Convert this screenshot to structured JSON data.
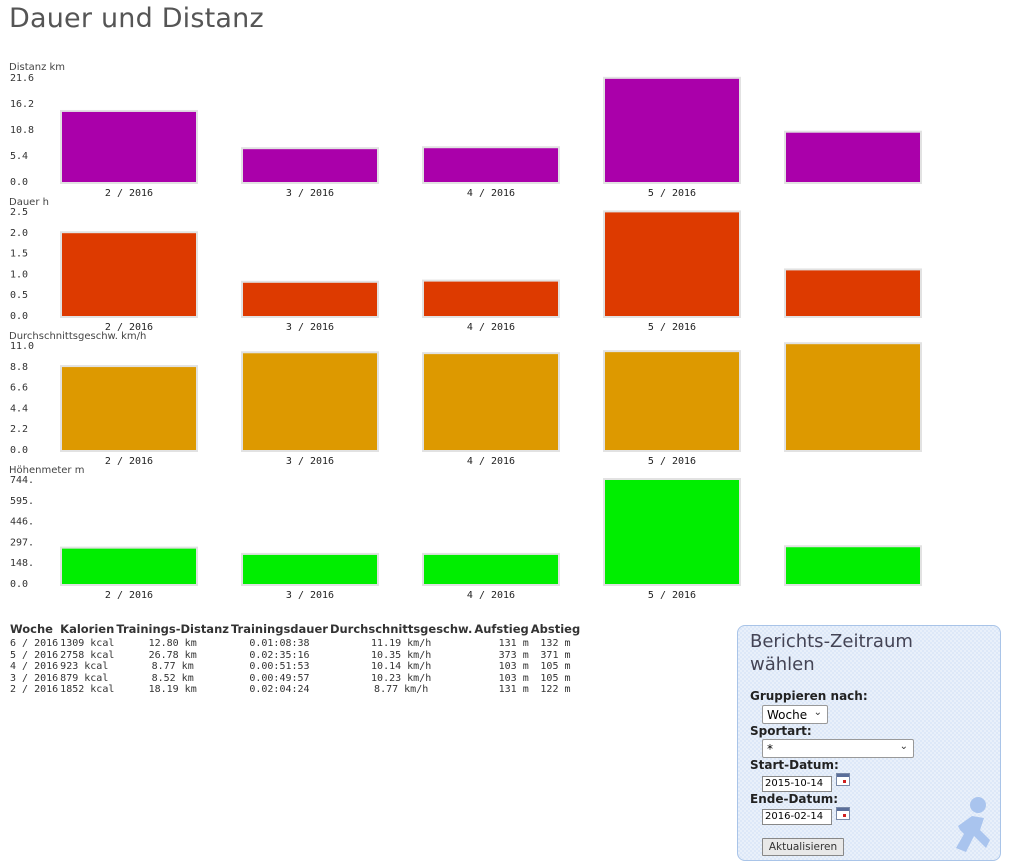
{
  "page": {
    "title": "Dauer und Distanz"
  },
  "chart_data": [
    {
      "type": "bar",
      "ylabel": "Distanz km",
      "categories": [
        "2 / 2016",
        "3 / 2016",
        "4 / 2016",
        "5 / 2016",
        ""
      ],
      "values": [
        18.19,
        8.52,
        8.77,
        26.78,
        12.8
      ],
      "yticks": [
        "0.0",
        "5.4",
        "10.8",
        "16.2",
        "21.6"
      ],
      "ylim": [
        0,
        27.0
      ],
      "color": "#aa00aa"
    },
    {
      "type": "bar",
      "ylabel": "Dauer h",
      "categories": [
        "2 / 2016",
        "3 / 2016",
        "4 / 2016",
        "5 / 2016",
        ""
      ],
      "values": [
        2.07,
        0.83,
        0.86,
        2.59,
        1.14
      ],
      "yticks": [
        "0.0",
        "0.5",
        "1.0",
        "1.5",
        "2.0",
        "2.5"
      ],
      "ylim": [
        0,
        2.6
      ],
      "color": "#dd3a00"
    },
    {
      "type": "bar",
      "ylabel": "Durchschnittsgeschw. km/h",
      "categories": [
        "2 / 2016",
        "3 / 2016",
        "4 / 2016",
        "5 / 2016",
        ""
      ],
      "values": [
        8.77,
        10.23,
        10.14,
        10.35,
        11.19
      ],
      "yticks": [
        "0.0",
        "2.2",
        "4.4",
        "6.6",
        "8.8",
        "11.0"
      ],
      "ylim": [
        0,
        11.0
      ],
      "color": "#dd9900"
    },
    {
      "type": "bar",
      "ylabel": "Höhenmeter m",
      "categories": [
        "2 / 2016",
        "3 / 2016",
        "4 / 2016",
        "5 / 2016",
        ""
      ],
      "values": [
        253,
        208,
        208,
        744,
        263
      ],
      "yticks": [
        "0.0",
        "148.",
        "297.",
        "446.",
        "595.",
        "744."
      ],
      "ylim": [
        0,
        744
      ],
      "color": "#00ee00"
    }
  ],
  "table": {
    "headers": [
      "Woche",
      "Kalorien",
      "Trainings-Distanz",
      "Trainingsdauer",
      "Durchschnittsgeschw.",
      "Aufstieg",
      "Abstieg"
    ],
    "rows": [
      [
        "6 / 2016",
        "1309 kcal",
        "12.80 km",
        "0.01:08:38",
        "11.19 km/h",
        "131 m",
        "132 m"
      ],
      [
        "5 / 2016",
        "2758 kcal",
        "26.78 km",
        "0.02:35:16",
        "10.35 km/h",
        "373 m",
        "371 m"
      ],
      [
        "4 / 2016",
        "923 kcal",
        "8.77 km",
        "0.00:51:53",
        "10.14 km/h",
        "103 m",
        "105 m"
      ],
      [
        "3 / 2016",
        "879 kcal",
        "8.52 km",
        "0.00:49:57",
        "10.23 km/h",
        "103 m",
        "105 m"
      ],
      [
        "2 / 2016",
        "1852 kcal",
        "18.19 km",
        "0.02:04:24",
        "8.77 km/h",
        "131 m",
        "122 m"
      ]
    ]
  },
  "panel": {
    "title": "Berichts-Zeitraum wählen",
    "group_label": "Gruppieren nach:",
    "group_value": "Woche",
    "sport_label": "Sportart:",
    "sport_value": "*",
    "start_label": "Start-Datum:",
    "start_value": "2015-10-14",
    "end_label": "Ende-Datum:",
    "end_value": "2016-02-14",
    "button_label": "Aktualisieren"
  },
  "icons": {
    "dropdown": "chevron-down-icon",
    "calendar": "calendar-icon",
    "logo": "runner-logo-icon"
  }
}
